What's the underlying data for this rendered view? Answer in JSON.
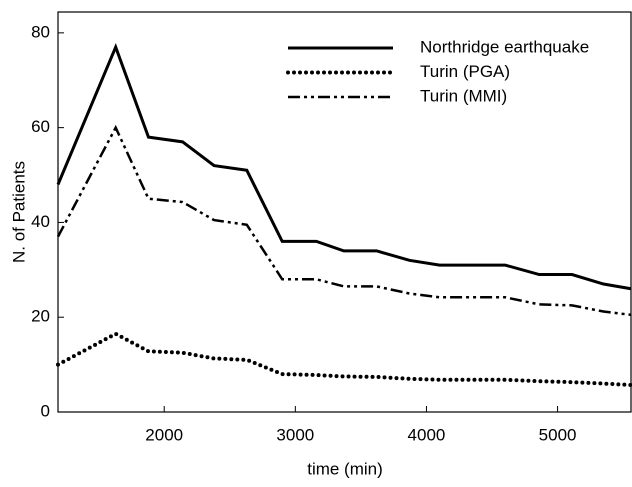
{
  "chart_data": {
    "type": "line",
    "x_label": "time (min)",
    "y_label": "N. of Patients",
    "x": [
      1190,
      1630,
      1880,
      2140,
      2380,
      2630,
      2900,
      3160,
      3370,
      3620,
      3870,
      4100,
      4350,
      4600,
      4860,
      5110,
      5350,
      5560
    ],
    "series": [
      {
        "name": "Northridge earthquake",
        "color": "#000000",
        "style": "solid",
        "values": [
          48,
          77,
          58,
          57,
          52,
          51,
          36,
          36,
          34,
          34,
          32,
          31,
          31,
          31,
          29,
          29,
          27,
          26
        ]
      },
      {
        "name": "Turin (PGA)",
        "color": "#000000",
        "style": "dotted",
        "values": [
          10,
          16.5,
          12.8,
          12.5,
          11.3,
          11,
          8,
          7.8,
          7.5,
          7.4,
          7,
          6.8,
          6.8,
          6.8,
          6.5,
          6.3,
          6,
          5.7
        ]
      },
      {
        "name": "Turin (MMI)",
        "color": "#000000",
        "style": "dashdotdot",
        "values": [
          37,
          60,
          45,
          44.3,
          40.5,
          39.5,
          28,
          28,
          26.5,
          26.5,
          25,
          24.2,
          24.2,
          24.2,
          22.7,
          22.5,
          21.2,
          20.5
        ]
      }
    ],
    "xlim": [
      1190,
      5560
    ],
    "ylim": [
      0,
      84.4
    ],
    "xticks": [
      2000,
      3000,
      4000,
      5000
    ],
    "yticks": [
      0,
      20,
      40,
      60,
      80
    ],
    "legend": "upper right"
  }
}
